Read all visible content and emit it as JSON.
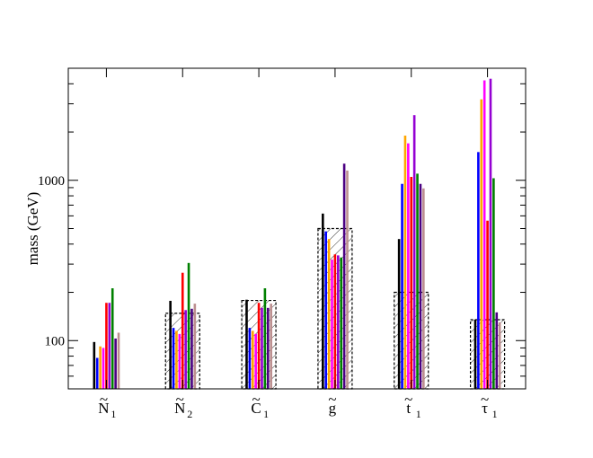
{
  "chart_data": {
    "type": "bar",
    "title": "",
    "xlabel": "",
    "ylabel": "mass (GeV)",
    "yscale": "log",
    "ylim": [
      50,
      5000
    ],
    "yticks": [
      {
        "value": 100,
        "label": "100"
      },
      {
        "value": 1000,
        "label": "1000"
      }
    ],
    "legend": "none",
    "grid": false,
    "categories": [
      {
        "base": "N",
        "accent": "~",
        "sub": "1"
      },
      {
        "base": "N",
        "accent": "~",
        "sub": "2"
      },
      {
        "base": "C",
        "accent": "~",
        "sub": "1"
      },
      {
        "base": "g",
        "accent": "~",
        "sub": ""
      },
      {
        "base": "t",
        "accent": "~",
        "sub": "1"
      },
      {
        "base": "τ",
        "accent": "~",
        "sub": "1"
      }
    ],
    "series_colors": [
      "#000000",
      "#0000ff",
      "#ffa500",
      "#ff00ff",
      "#ff0000",
      "#9400d3",
      "#008000",
      "#4b0082",
      "#bc8f8f"
    ],
    "series": [
      {
        "values": [
          98,
          177,
          180,
          620,
          430,
          135
        ]
      },
      {
        "values": [
          78,
          120,
          120,
          480,
          950,
          1500
        ]
      },
      {
        "values": [
          92,
          115,
          115,
          430,
          1900,
          3200
        ]
      },
      {
        "values": [
          90,
          110,
          110,
          320,
          1700,
          4200
        ]
      },
      {
        "values": [
          172,
          265,
          172,
          345,
          1050,
          560
        ]
      },
      {
        "values": [
          172,
          155,
          160,
          340,
          2550,
          4300
        ]
      },
      {
        "values": [
          212,
          305,
          212,
          330,
          1100,
          1030
        ]
      },
      {
        "values": [
          103,
          158,
          160,
          1270,
          950,
          150
        ]
      },
      {
        "values": [
          112,
          170,
          170,
          1150,
          890,
          130
        ]
      }
    ],
    "bounds": [
      {
        "category_index": 1,
        "upper": 148
      },
      {
        "category_index": 2,
        "upper": 178
      },
      {
        "category_index": 3,
        "upper": 500
      },
      {
        "category_index": 4,
        "upper": 200
      },
      {
        "category_index": 5,
        "upper": 135
      }
    ]
  }
}
